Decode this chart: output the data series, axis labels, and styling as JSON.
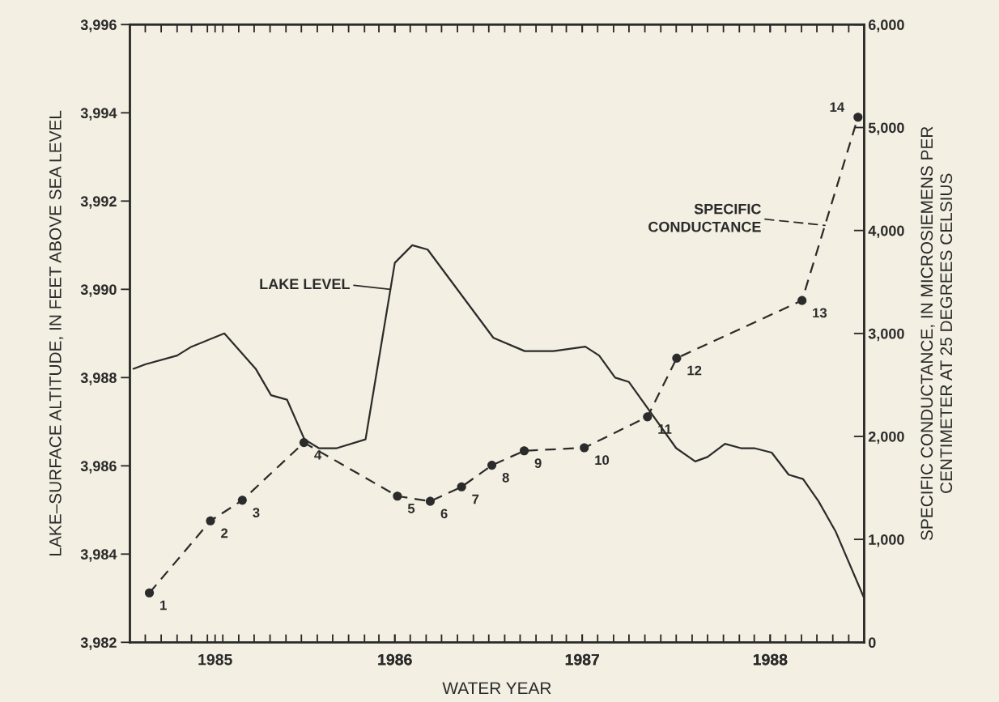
{
  "chart_data": {
    "type": "line",
    "xlabel": "WATER YEAR",
    "ylabel": "LAKE–SURFACE ALTITUDE, IN FEET ABOVE SEA LEVEL",
    "y2label": "SPECIFIC CONDUCTANCE, IN MICROSIEMENS PER\nCENTIMETER AT 25 DEGREES CELSIUS",
    "xlim": [
      "1984-11-01",
      "1988-10-01"
    ],
    "xticks": [
      {
        "value": "1984-12-01",
        "label": null
      },
      {
        "value": "1985-01-01",
        "label": null
      },
      {
        "value": "1985-02-01",
        "label": null
      },
      {
        "value": "1985-03-01",
        "label": null
      },
      {
        "value": "1985-04-01",
        "label": null
      },
      {
        "value": "1985-05-01",
        "label": null
      },
      {
        "value": "1985-06-01",
        "label": null
      },
      {
        "value": "1985-07-01",
        "label": null
      },
      {
        "value": "1985-08-01",
        "label": null
      },
      {
        "value": "1985-09-01",
        "label": null
      },
      {
        "value": "1985-10-01",
        "label": null
      },
      {
        "value": "1985-11-01",
        "label": null
      },
      {
        "value": "1985-12-01",
        "label": null
      },
      {
        "value": "1986-01-01",
        "label": null
      },
      {
        "value": "1986-02-01",
        "label": null
      },
      {
        "value": "1986-03-01",
        "label": null
      },
      {
        "value": "1986-04-01",
        "label": null
      },
      {
        "value": "1986-05-01",
        "label": null
      },
      {
        "value": "1986-06-01",
        "label": null
      },
      {
        "value": "1986-07-01",
        "label": null
      },
      {
        "value": "1986-08-01",
        "label": null
      },
      {
        "value": "1986-09-01",
        "label": null
      },
      {
        "value": "1986-10-01",
        "label": null
      },
      {
        "value": "1986-11-01",
        "label": null
      },
      {
        "value": "1986-12-01",
        "label": null
      },
      {
        "value": "1987-01-01",
        "label": null
      },
      {
        "value": "1987-02-01",
        "label": null
      },
      {
        "value": "1987-03-01",
        "label": null
      },
      {
        "value": "1987-04-01",
        "label": null
      },
      {
        "value": "1987-05-01",
        "label": null
      },
      {
        "value": "1987-06-01",
        "label": null
      },
      {
        "value": "1987-07-01",
        "label": null
      },
      {
        "value": "1987-08-01",
        "label": null
      },
      {
        "value": "1987-09-01",
        "label": null
      },
      {
        "value": "1987-10-01",
        "label": null
      },
      {
        "value": "1987-11-01",
        "label": null
      },
      {
        "value": "1987-12-01",
        "label": null
      },
      {
        "value": "1988-01-01",
        "label": null
      },
      {
        "value": "1988-02-01",
        "label": null
      },
      {
        "value": "1988-03-01",
        "label": null
      },
      {
        "value": "1988-04-01",
        "label": null
      },
      {
        "value": "1988-05-01",
        "label": null
      },
      {
        "value": "1988-06-01",
        "label": null
      },
      {
        "value": "1988-07-01",
        "label": null
      },
      {
        "value": "1988-08-01",
        "label": null
      },
      {
        "value": "1988-09-01",
        "label": null
      },
      {
        "value": "1985-04-16",
        "label": "1985"
      },
      {
        "value": "1986-04-01",
        "label": "1986"
      },
      {
        "value": "1987-04-01",
        "label": "1987"
      },
      {
        "value": "1988-04-01",
        "label": "1988"
      }
    ],
    "ylim": [
      3982,
      3996
    ],
    "yticks": [
      {
        "value": 3982,
        "label": "3,982"
      },
      {
        "value": 3984,
        "label": "3,984"
      },
      {
        "value": 3986,
        "label": "3,986"
      },
      {
        "value": 3988,
        "label": "3,988"
      },
      {
        "value": 3990,
        "label": "3,990"
      },
      {
        "value": 3992,
        "label": "3,992"
      },
      {
        "value": 3994,
        "label": "3,994"
      },
      {
        "value": 3996,
        "label": "3,996"
      }
    ],
    "y2lim": [
      0,
      6000
    ],
    "y2ticks": [
      0,
      {
        "value": 1000,
        "label": "1,000"
      },
      {
        "value": 2000,
        "label": "2,000"
      },
      {
        "value": 3000,
        "label": "3,000"
      },
      {
        "value": 4000,
        "label": "4,000"
      },
      {
        "value": 5000,
        "label": "5,000"
      },
      {
        "value": 6000,
        "label": "6,000"
      }
    ],
    "grid": false,
    "legend": "top",
    "series": [
      {
        "name": "LAKE LEVEL",
        "color": "#2b2b2b",
        "line_style": "solid",
        "marker": "none",
        "x": [
          "1984-11-08",
          "1984-12-01",
          "1985-02-01",
          "1985-03-01",
          "1985-05-04",
          "1985-07-04",
          "1985-08-03",
          "1985-09-03",
          "1985-10-07",
          "1985-11-04",
          "1985-12-09",
          "1986-02-03",
          "1986-04-01",
          "1986-05-05",
          "1986-06-04",
          "1986-10-10",
          "1986-12-10",
          "1987-01-07",
          "1987-02-04",
          "1987-04-07",
          "1987-05-04",
          "1987-06-04",
          "1987-07-01",
          "1987-10-01",
          "1987-11-07",
          "1987-12-01",
          "1988-01-04",
          "1988-02-04",
          "1988-03-01",
          "1988-04-04",
          "1988-05-07",
          "1988-06-04",
          "1988-07-04",
          "1988-08-07",
          "1988-10-01"
        ],
        "values": [
          3988.2,
          3988.3,
          3988.5,
          3988.7,
          3989.0,
          3988.2,
          3987.6,
          3987.5,
          3986.6,
          3986.4,
          3986.4,
          3986.6,
          3990.6,
          3991.0,
          3990.9,
          3988.9,
          3988.6,
          3988.6,
          3988.6,
          3988.7,
          3988.5,
          3988.0,
          3987.9,
          3986.4,
          3986.1,
          3986.2,
          3986.5,
          3986.4,
          3986.4,
          3986.3,
          3985.8,
          3985.7,
          3985.2,
          3984.5,
          3983.0
        ]
      },
      {
        "name": "SPECIFIC\nCONDUCTANCE",
        "axis": "y2",
        "color": "#2b2b2b",
        "line_style": "dashed",
        "marker": "circle",
        "x": [
          "1984-12-09",
          "1985-04-07",
          "1985-06-08",
          "1985-10-06",
          "1986-04-06",
          "1986-06-09",
          "1986-08-09",
          "1986-10-07",
          "1986-12-09",
          "1987-04-05",
          "1987-08-06",
          "1987-10-02",
          "1988-06-02",
          "1988-09-19"
        ],
        "values": [
          480,
          1180,
          1380,
          1940,
          1420,
          1370,
          1510,
          1720,
          1860,
          1890,
          2190,
          2760,
          3320,
          5100
        ]
      }
    ],
    "annotations": [
      "1",
      "2",
      "3",
      "4",
      "5",
      "6",
      "7",
      "8",
      "9",
      "10",
      "11",
      "12",
      "13",
      "14"
    ]
  }
}
